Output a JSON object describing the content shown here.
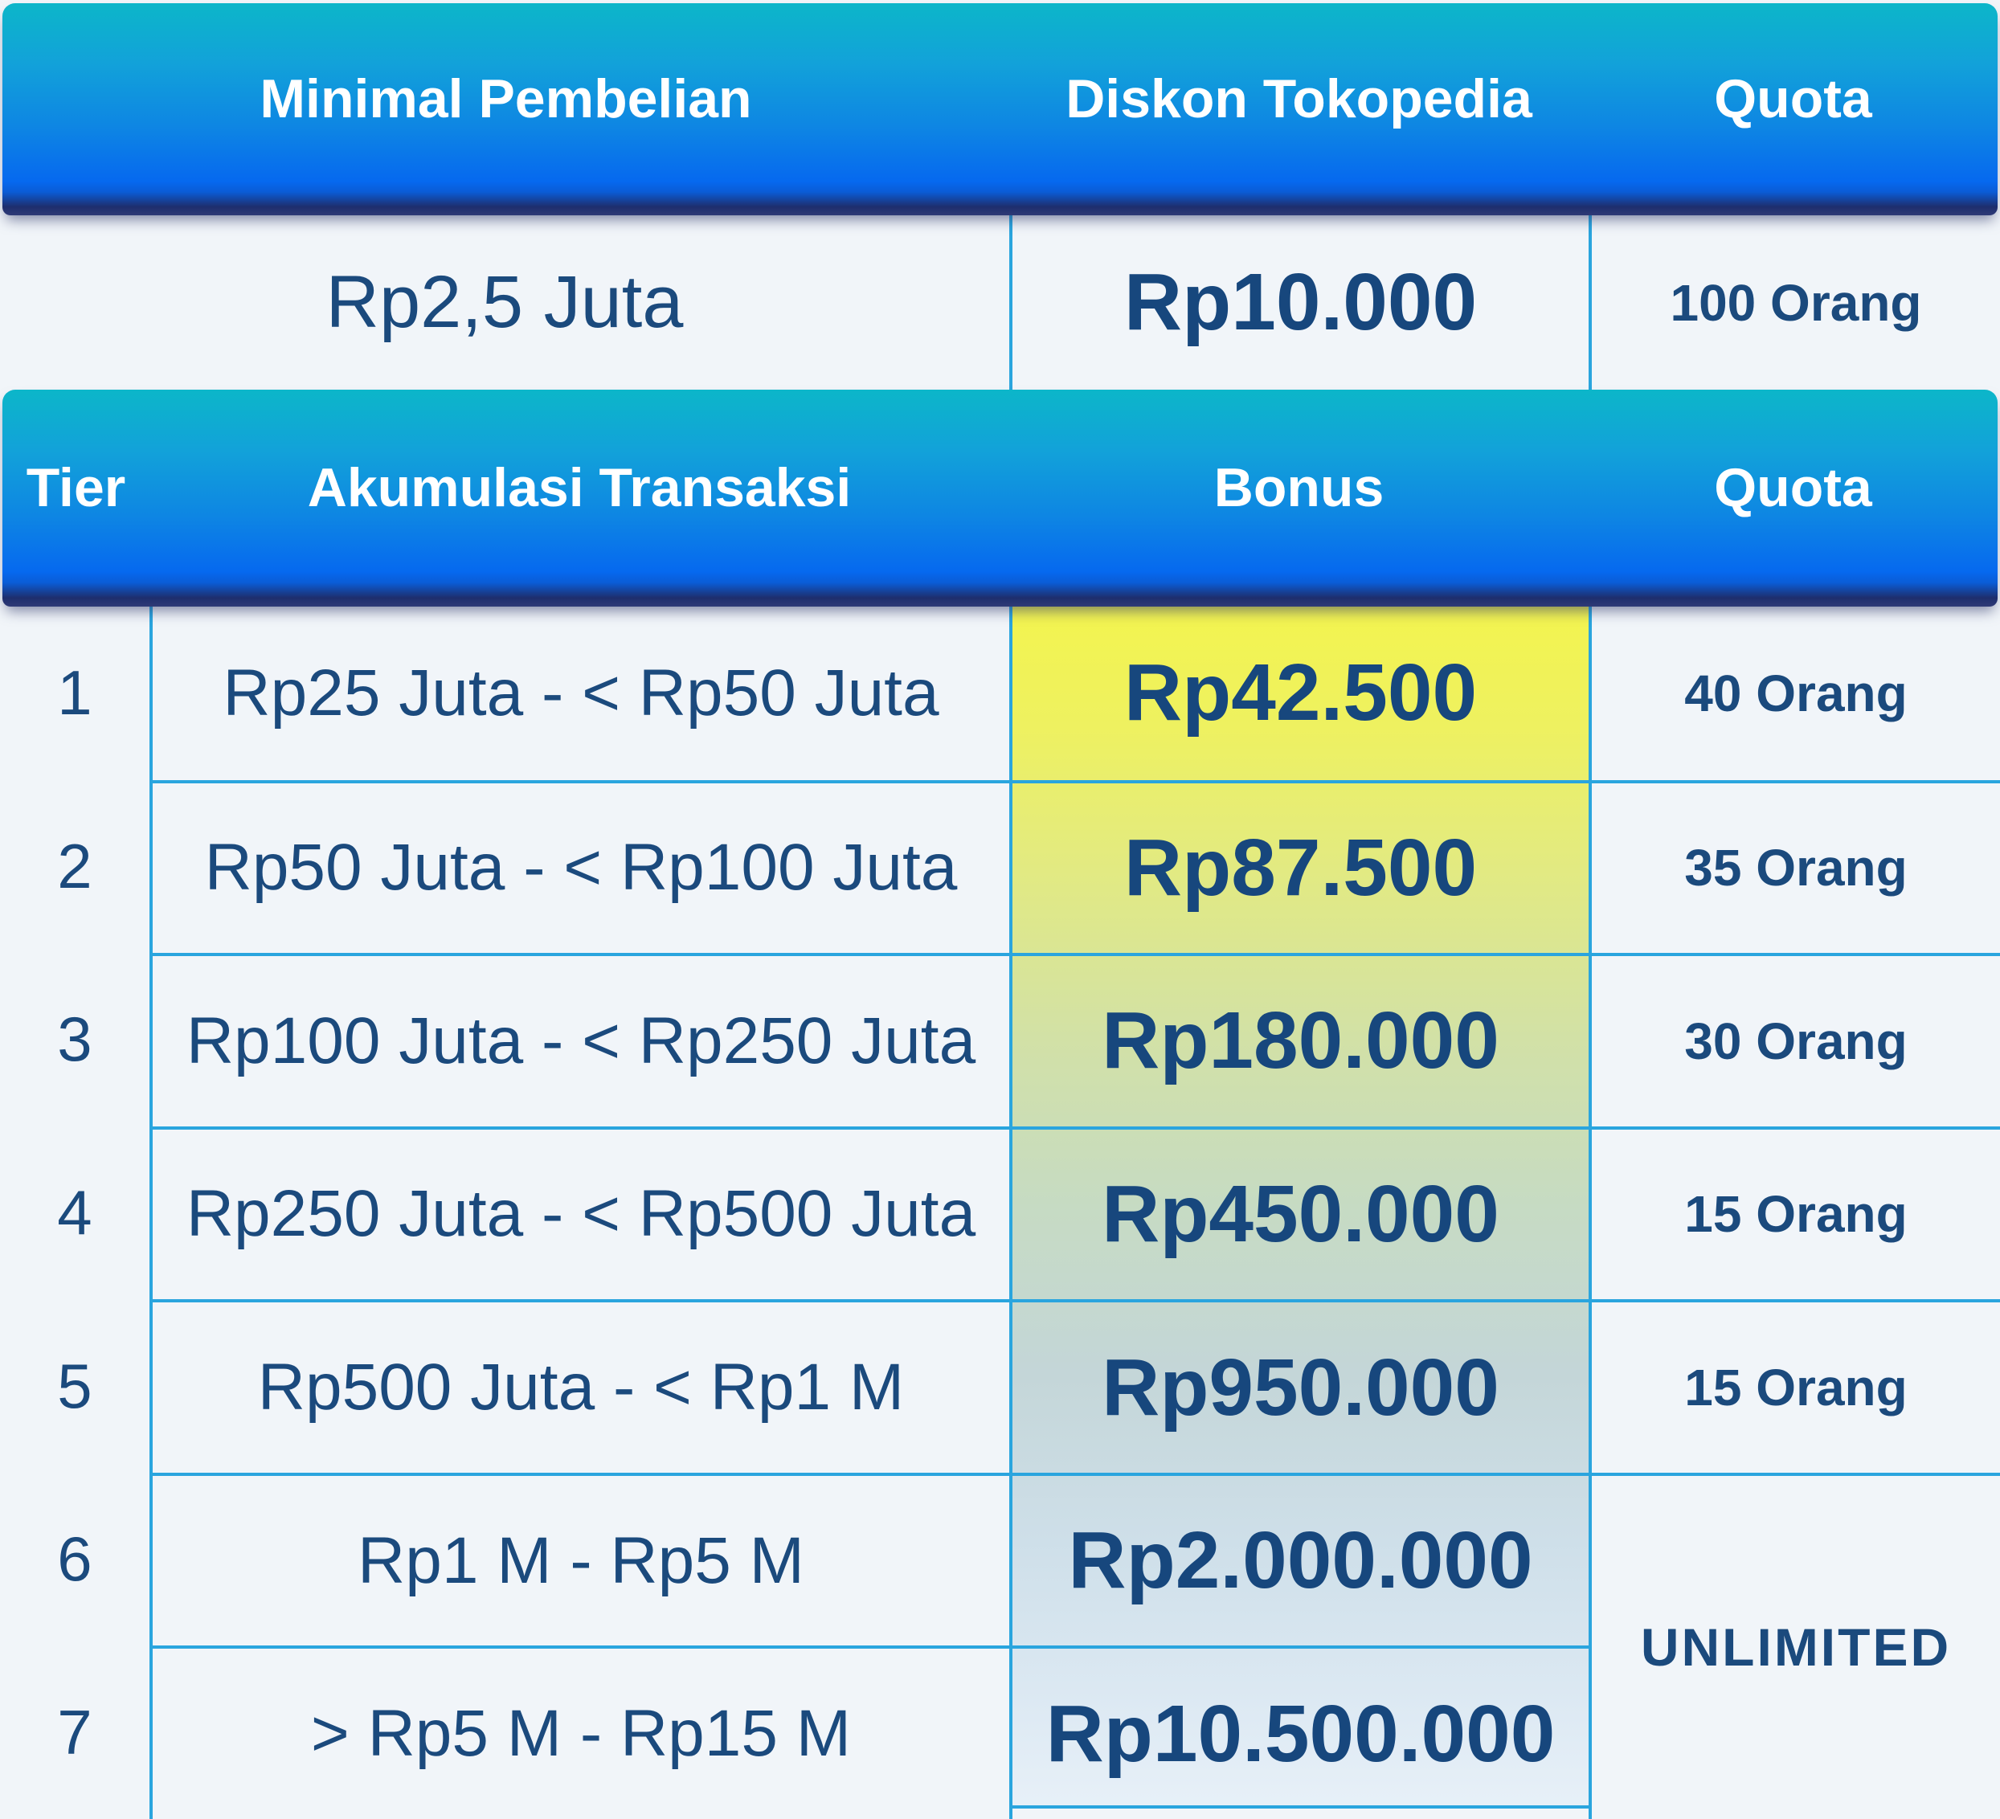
{
  "colors": {
    "header_gradient_top": "#0cb6c9",
    "header_gradient_bottom": "#0669ef",
    "header_strip_navy": "#1e2e6d",
    "divider_cyan": "#2aa5de",
    "text_navy": "#1b4a7d",
    "amount_navy": "#17477d",
    "highlight_yellow_top": "#f3f44f",
    "highlight_fade_bottom": "#e7f0f8",
    "page_background": "#f1f5f9"
  },
  "table1": {
    "headers": [
      "Minimal Pembelian",
      "Diskon Tokopedia",
      "Quota"
    ],
    "row": {
      "min_purchase": "Rp2,5 Juta",
      "discount": "Rp10.000",
      "quota": "100 Orang"
    }
  },
  "table2": {
    "headers": [
      "Tier",
      "Akumulasi Transaksi",
      "Bonus",
      "Quota"
    ],
    "rows": [
      {
        "tier": "1",
        "range": "Rp25 Juta - < Rp50 Juta",
        "bonus": "Rp42.500",
        "quota": "40 Orang"
      },
      {
        "tier": "2",
        "range": "Rp50 Juta - < Rp100 Juta",
        "bonus": "Rp87.500",
        "quota": "35 Orang"
      },
      {
        "tier": "3",
        "range": "Rp100 Juta - < Rp250 Juta",
        "bonus": "Rp180.000",
        "quota": "30 Orang"
      },
      {
        "tier": "4",
        "range": "Rp250 Juta - < Rp500 Juta",
        "bonus": "Rp450.000",
        "quota": "15 Orang"
      },
      {
        "tier": "5",
        "range": "Rp500 Juta - < Rp1 M",
        "bonus": "Rp950.000",
        "quota": "15 Orang"
      },
      {
        "tier": "6",
        "range": "Rp1 M - Rp5 M",
        "bonus": "Rp2.000.000",
        "quota": null
      },
      {
        "tier": "7",
        "range": "> Rp5 M - Rp15 M",
        "bonus": "Rp10.500.000",
        "quota": null
      }
    ],
    "merged_quota": {
      "label": "UNLIMITED",
      "applies_to_tiers": [
        "6",
        "7"
      ]
    }
  }
}
